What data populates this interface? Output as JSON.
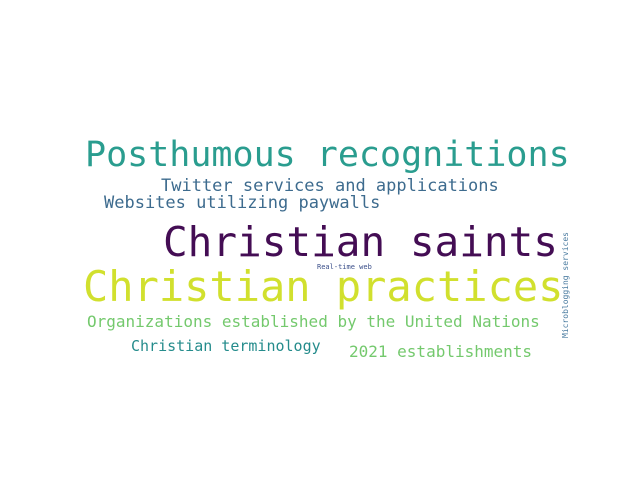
{
  "words": [
    {
      "text": "Posthumous recognitions",
      "color": "#2a9d8f"
    },
    {
      "text": "Twitter services and applications",
      "color": "#3d6b8e"
    },
    {
      "text": "Websites utilizing paywalls",
      "color": "#3d6b8e"
    },
    {
      "text": "Christian saints",
      "color": "#440d54"
    },
    {
      "text": "Real-time web",
      "color": "#3b4f8a"
    },
    {
      "text": "Christian practices",
      "color": "#d1e02e"
    },
    {
      "text": "Organizations established by the United Nations",
      "color": "#74c96d"
    },
    {
      "text": "Christian terminology",
      "color": "#258c8c"
    },
    {
      "text": "2021 establishments",
      "color": "#74c96d"
    },
    {
      "text": "Microblogging services",
      "color": "#4a7ba0"
    }
  ]
}
